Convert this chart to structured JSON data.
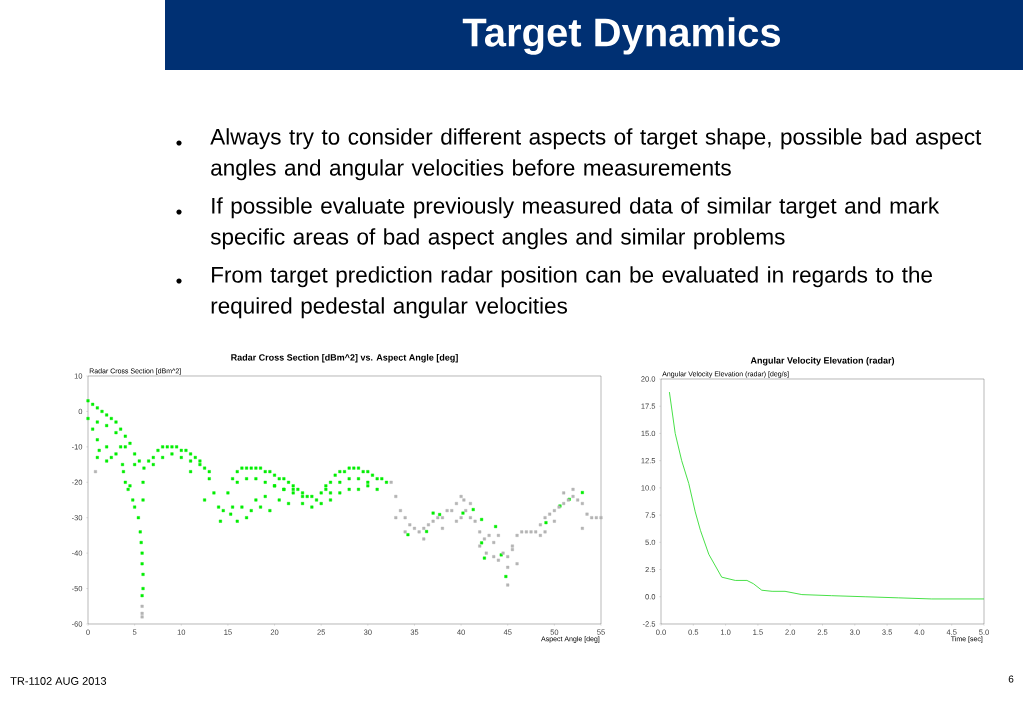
{
  "chart_data": [
    {
      "type": "other",
      "title": "Target Dynamics",
      "annotations": [
        "Always try to consider different aspects of target shape, possible bad aspect angles and angular velocities before measurements",
        "If possible evaluate previously measured data of similar target and mark specific areas of bad aspect angles and similar problems",
        "From target prediction radar position can be evaluated in regards to the required pedestal angular velocities",
        "TR-1102 AUG 2013",
        "6"
      ]
    },
    {
      "type": "scatter",
      "title": "Radar Cross Section [dBm^2] vs. Aspect Angle [deg]",
      "ylabel": "Radar Cross Section [dBm^2]",
      "xlabel": "Aspect Angle [deg]",
      "xlim": [
        0,
        55
      ],
      "ylim": [
        -60,
        10
      ],
      "xticks": [
        0,
        5,
        10,
        15,
        20,
        25,
        30,
        35,
        40,
        45,
        50,
        55
      ],
      "yticks": [
        -60,
        -50,
        -40,
        -30,
        -20,
        -10,
        0,
        10
      ],
      "marker": "square",
      "series": [
        {
          "color": "#00ee00",
          "x": [
            0,
            0.5,
            1,
            1.5,
            2,
            2.5,
            3,
            3.5,
            4,
            4.5,
            5,
            5.5,
            6,
            6.5,
            7,
            7.5,
            8,
            8.5,
            9,
            9.5,
            10,
            10.5,
            11,
            11.5,
            12,
            12.5,
            13,
            13.5,
            14,
            14.2,
            14.5,
            15,
            15.5,
            16,
            16.5,
            17,
            17.5,
            18,
            18.5,
            19,
            19.5,
            20,
            20.5,
            21,
            21.5,
            22,
            22.5,
            23,
            23.5,
            24,
            24.5,
            25,
            25.5,
            26,
            26.5,
            27,
            27.5,
            28,
            28.5,
            29,
            29.5,
            30,
            30.5,
            31,
            31.5,
            32,
            0,
            1,
            2,
            3,
            4,
            5,
            7,
            8,
            9,
            10,
            11,
            12,
            13,
            16,
            17,
            18,
            19,
            20,
            21,
            22,
            23,
            24,
            25,
            26,
            27,
            28,
            29,
            30,
            31,
            0.5,
            1,
            1,
            1.2,
            2,
            2,
            2.5,
            3,
            3.5,
            3.7,
            3.8,
            4,
            4.3,
            4.5,
            4.8,
            5,
            5.4,
            5.6,
            5.7,
            5.8,
            5.8,
            5.9,
            5.9,
            5.8,
            5.9,
            5.9,
            11,
            12.5,
            15.3,
            15.5,
            16,
            16.5,
            17,
            17.5,
            18,
            18.5,
            19,
            19.5,
            20,
            20.5,
            21,
            21.5,
            22,
            23,
            25.5,
            26,
            27,
            28,
            29,
            30,
            34.3,
            36.3,
            37,
            37.7,
            40.2,
            41.3,
            42.2,
            42.2,
            42.5,
            43.7,
            44.3,
            44.8,
            49.1,
            51.6,
            53,
            50.6
          ],
          "values": [
            3,
            2,
            1,
            0,
            -1,
            -2,
            -3,
            -5,
            -7,
            -9,
            -12,
            -14,
            -16,
            -14,
            -13,
            -11,
            -10,
            -10,
            -10,
            -10,
            -11,
            -11,
            -12,
            -13,
            -14,
            -16,
            -19,
            -23,
            -27,
            -31,
            -28,
            -23,
            -19,
            -17,
            -16,
            -16,
            -16,
            -16,
            -16,
            -17,
            -17,
            -18,
            -19,
            -19,
            -20,
            -21,
            -22,
            -23,
            -24,
            -24,
            -25,
            -23,
            -21,
            -20,
            -18,
            -17,
            -17,
            -16,
            -16,
            -16,
            -17,
            -17,
            -18,
            -19,
            -19,
            -20,
            -2,
            -3,
            -4,
            -6,
            -10,
            -15,
            -15,
            -13,
            -12,
            -13,
            -14,
            -15,
            -17,
            -20,
            -19,
            -19,
            -20,
            -21,
            -22,
            -23,
            -26,
            -27,
            -26,
            -23,
            -20,
            -19,
            -19,
            -20,
            -22,
            -5,
            -8,
            -13,
            -11,
            -10,
            -14,
            -13,
            -12,
            -10,
            -15,
            -17,
            -20,
            -22,
            -21,
            -25,
            -27,
            -30,
            -34,
            -37,
            -40,
            -43,
            -46,
            -50,
            -52,
            -25,
            -20,
            -17,
            -25,
            -29,
            -27,
            -31,
            -27,
            -30,
            -28,
            -25,
            -27,
            -24,
            -28,
            -21,
            -25,
            -22,
            -26,
            -22,
            -24,
            -22,
            -25,
            -23,
            -22,
            -22,
            -21,
            -34.8,
            -33.9,
            -28.7,
            -29.1,
            -28.7,
            -27.7,
            -30.5,
            -37.1,
            -41.4,
            -32.5,
            -40.5,
            -46.6,
            -31.4,
            -24.8,
            -22.9,
            -26.7
          ]
        },
        {
          "color": "#b4b4b4",
          "x": [
            32.5,
            33,
            33.5,
            34,
            34.5,
            35,
            35.5,
            36,
            36.5,
            37,
            37.5,
            38,
            38.5,
            39,
            39.5,
            40,
            40.3,
            40.5,
            41,
            41.5,
            42,
            42.5,
            43,
            43.5,
            44,
            44.5,
            45,
            45,
            45.5,
            46,
            46.5,
            47,
            47.5,
            48,
            48.5,
            49,
            49.5,
            50,
            50.5,
            51,
            51.5,
            52,
            52.5,
            53,
            53.5,
            54,
            54.5,
            55,
            33,
            34,
            36,
            38,
            39.5,
            40,
            41,
            42,
            42.7,
            43.5,
            44,
            45,
            45.5,
            46,
            48.5,
            49,
            50,
            51,
            52,
            53,
            0.8,
            5.8,
            5.8,
            5.8
          ],
          "values": [
            -20,
            -24,
            -28,
            -30,
            -32,
            -33,
            -34,
            -33,
            -32,
            -31,
            -30,
            -30,
            -28,
            -28,
            -26,
            -24,
            -25,
            -28,
            -30,
            -31,
            -34,
            -36,
            -35,
            -37,
            -35,
            -40,
            -44,
            -49,
            -38,
            -35,
            -34,
            -34,
            -34,
            -34,
            -32,
            -30,
            -29,
            -28,
            -27,
            -26,
            -25,
            -24,
            -25,
            -26,
            -29,
            -30,
            -30,
            -30,
            -30,
            -34,
            -36,
            -33,
            -31,
            -30,
            -26,
            -38,
            -40,
            -41,
            -42,
            -41,
            -39,
            -43,
            -35,
            -34,
            -31,
            -23,
            -22,
            -33,
            -17,
            -55,
            -57,
            -58
          ]
        }
      ]
    },
    {
      "type": "line",
      "title": "Angular Velocity Elevation (radar)",
      "ylabel": "Angular Velocity Elevation (radar) [deg/s]",
      "xlabel": "Time [sec]",
      "xlim": [
        0,
        5
      ],
      "ylim": [
        -2.5,
        20
      ],
      "color": "#33dd33",
      "xticks": [
        {
          "value": 0,
          "label": "0.0"
        },
        {
          "value": 0.5,
          "label": "0.5"
        },
        {
          "value": 1,
          "label": "1.0"
        },
        {
          "value": 1.5,
          "label": "1.5"
        },
        {
          "value": 2,
          "label": "2.0"
        },
        {
          "value": 2.5,
          "label": "2.5"
        },
        {
          "value": 3,
          "label": "3.0"
        },
        {
          "value": 3.5,
          "label": "3.5"
        },
        {
          "value": 4,
          "label": "4.0"
        },
        {
          "value": 4.5,
          "label": "4.5"
        },
        {
          "value": 5,
          "label": "5.0"
        }
      ],
      "yticks": [
        {
          "value": -2.5,
          "label": "-2.5"
        },
        {
          "value": 0,
          "label": "0.0"
        },
        {
          "value": 2.5,
          "label": "2.5"
        },
        {
          "value": 5,
          "label": "5.0"
        },
        {
          "value": 7.5,
          "label": "7.5"
        },
        {
          "value": 10,
          "label": "10.0"
        },
        {
          "value": 12.5,
          "label": "12.5"
        },
        {
          "value": 15,
          "label": "15.0"
        },
        {
          "value": 17.5,
          "label": "17.5"
        },
        {
          "value": 20,
          "label": "20.0"
        }
      ],
      "x": [
        0.13,
        0.22,
        0.32,
        0.43,
        0.53,
        0.61,
        0.74,
        0.94,
        1.15,
        1.33,
        1.43,
        1.56,
        1.72,
        1.92,
        2.18,
        2.64,
        3.16,
        3.68,
        4.19,
        5.0
      ],
      "values": [
        18.8,
        15.0,
        12.5,
        10.4,
        7.8,
        6.1,
        3.9,
        1.8,
        1.5,
        1.5,
        1.2,
        0.6,
        0.5,
        0.5,
        0.2,
        0.1,
        0.0,
        -0.1,
        -0.2,
        -0.2
      ]
    }
  ]
}
